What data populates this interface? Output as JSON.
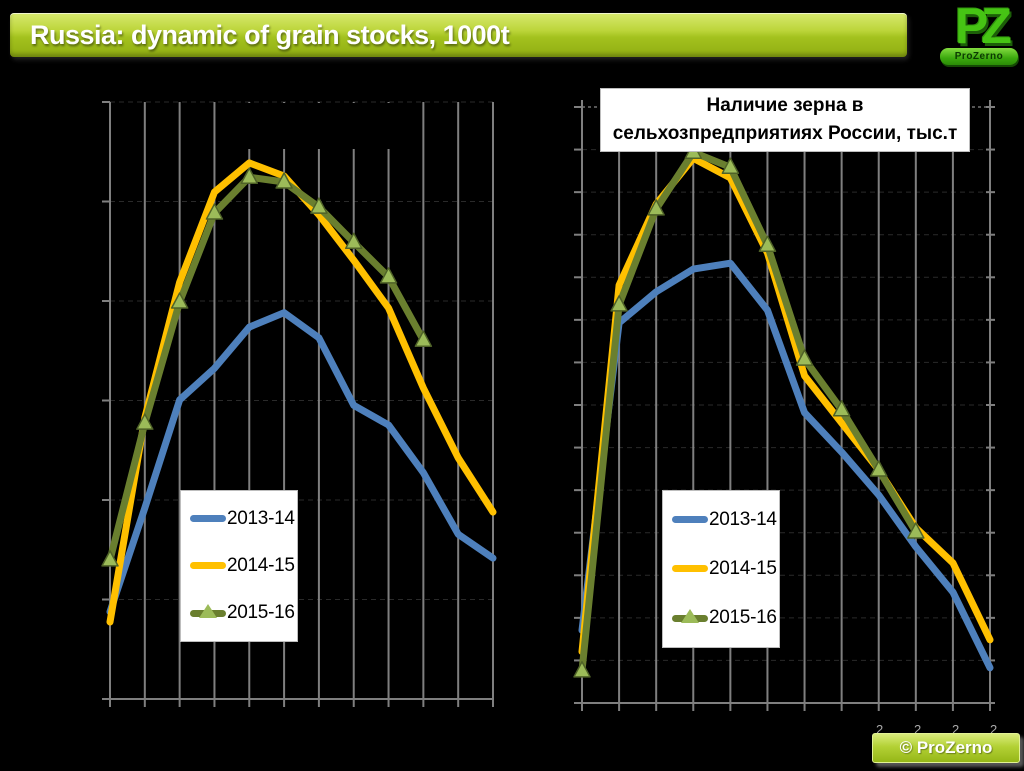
{
  "header": {
    "title": "Russia: dynamic of grain stocks, 1000t"
  },
  "logo": {
    "letters": "PZ",
    "name": "ProZerno"
  },
  "badge": {
    "label": "© ProZerno"
  },
  "axis_fragments": {
    "chars": [
      "2",
      "2",
      "2",
      "2"
    ]
  },
  "colors": {
    "background": "#000000",
    "header_green": "#AECB28",
    "gridline": "#7F7F7F",
    "blue": "#4E80BC",
    "yellow": "#FFC000",
    "olive": "#6A7F2F",
    "marker_fill": "#9CBB59",
    "marker_stroke": "#4F6228",
    "box_border": "#BDBDBD"
  },
  "legend": {
    "items": [
      {
        "label": "2013-14",
        "color": "#4E80BC",
        "marker": "line"
      },
      {
        "label": "2014-15",
        "color": "#FFC000",
        "marker": "line"
      },
      {
        "label": "2015-16",
        "color": "#6A7F2F",
        "marker": "line+triangle"
      }
    ]
  },
  "chart_data": [
    {
      "type": "line",
      "position": "left",
      "title": "",
      "title_visible": false,
      "x_axis": {
        "points": 12,
        "labels_visible": false
      },
      "y_axis": {
        "labels_visible": false,
        "scale": "relative 0-100 (tick labels not legible in source image)",
        "gridline_intervals": 6
      },
      "legend_position": "inside-lower-left",
      "series": [
        {
          "name": "2013-14",
          "color": "#4E80BC",
          "values": [
            14.6,
            32.0,
            50.1,
            55.4,
            62.3,
            64.7,
            60.5,
            49.2,
            45.9,
            37.9,
            27.6,
            23.6
          ]
        },
        {
          "name": "2014-15",
          "color": "#FFC000",
          "values": [
            12.9,
            47.1,
            69.8,
            84.9,
            89.8,
            87.6,
            81.1,
            73.5,
            65.5,
            52.1,
            40.4,
            31.3
          ]
        },
        {
          "name": "2015-16",
          "color": "#6A7F2F",
          "marker": "triangle",
          "values": [
            23.3,
            46.2,
            66.5,
            81.4,
            87.4,
            86.6,
            82.4,
            76.5,
            70.7,
            60.1
          ]
        }
      ]
    },
    {
      "type": "line",
      "position": "right",
      "title": "Наличие зерна в сельхозпредприятиях России, тыс.т",
      "title_lines": [
        "Наличие зерна в",
        "сельхозпредприятиях России, тыс.т"
      ],
      "x_axis": {
        "points": 12,
        "labels_visible": false
      },
      "y_axis": {
        "labels_visible": false,
        "scale": "relative 0-100 (tick labels not legible in source image)",
        "gridline_intervals": 14
      },
      "legend_position": "inside-lower-left",
      "series": [
        {
          "name": "2013-14",
          "color": "#4E80BC",
          "values": [
            12.2,
            63.8,
            69.0,
            72.8,
            73.8,
            65.9,
            48.7,
            42.1,
            34.9,
            26.2,
            18.6,
            5.9
          ]
        },
        {
          "name": "2014-15",
          "color": "#FFC000",
          "values": [
            8.6,
            70.1,
            83.7,
            91.4,
            88.1,
            75.5,
            54.9,
            47.0,
            39.1,
            29.4,
            23.5,
            10.6
          ]
        },
        {
          "name": "2015-16",
          "color": "#6A7F2F",
          "marker": "triangle",
          "values": [
            5.4,
            66.8,
            82.9,
            92.4,
            89.9,
            76.8,
            57.7,
            49.2,
            39.1,
            28.7
          ]
        }
      ]
    }
  ]
}
